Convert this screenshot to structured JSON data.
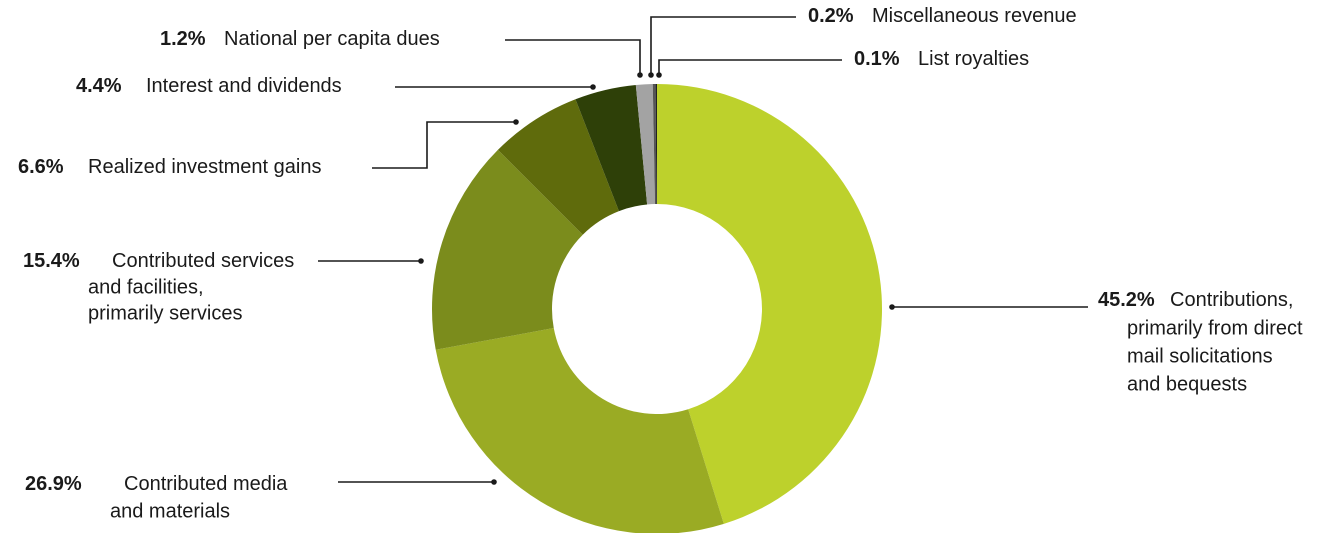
{
  "chart_data": {
    "type": "donut",
    "categories": [
      [
        "Contributions,",
        "primarily from direct",
        "mail solicitations",
        "and bequests"
      ],
      [
        "Contributed media",
        "and materials"
      ],
      [
        "Contributed services",
        "and facilities,",
        "primarily services"
      ],
      [
        "Realized investment gains"
      ],
      [
        "Interest and dividends"
      ],
      [
        "National per capita dues"
      ],
      [
        "Miscellaneous revenue"
      ],
      [
        "List royalties"
      ]
    ],
    "values": [
      45.2,
      26.9,
      15.4,
      6.6,
      4.4,
      1.2,
      0.2,
      0.1
    ],
    "value_labels": [
      "45.2%",
      "26.9%",
      "15.4%",
      "6.6%",
      "4.4%",
      "1.2%",
      "0.2%",
      "0.1%"
    ],
    "colors": [
      "#bdd12c",
      "#9aab24",
      "#7b8c1c",
      "#5f6b0c",
      "#2e4008",
      "#a3a3a3",
      "#555555",
      "#222222"
    ]
  }
}
